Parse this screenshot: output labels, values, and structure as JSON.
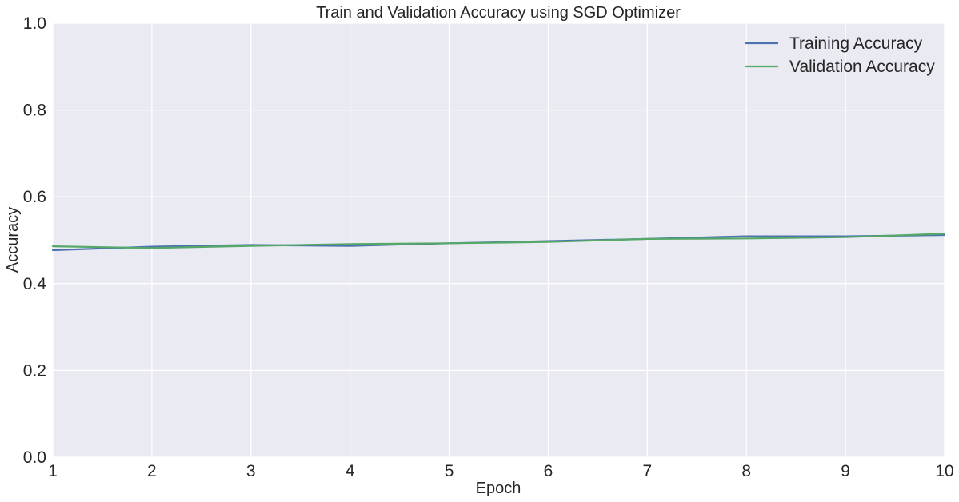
{
  "chart_data": {
    "type": "line",
    "title": "Train and Validation Accuracy using SGD Optimizer",
    "xlabel": "Epoch",
    "ylabel": "Accuracy",
    "xlim": [
      1,
      10
    ],
    "ylim": [
      0.0,
      1.0
    ],
    "x": [
      1,
      2,
      3,
      4,
      5,
      6,
      7,
      8,
      9,
      10
    ],
    "xticks": [
      "1",
      "2",
      "3",
      "4",
      "5",
      "6",
      "7",
      "8",
      "9",
      "10"
    ],
    "yticks": [
      "0.0",
      "0.2",
      "0.4",
      "0.6",
      "0.8",
      "1.0"
    ],
    "grid": true,
    "legend_position": "top-right",
    "series": [
      {
        "name": "Training Accuracy",
        "color": "#4c72b0",
        "values": [
          0.477,
          0.485,
          0.489,
          0.487,
          0.493,
          0.498,
          0.503,
          0.509,
          0.509,
          0.512
        ]
      },
      {
        "name": "Validation Accuracy",
        "color": "#55a868",
        "values": [
          0.486,
          0.482,
          0.487,
          0.491,
          0.493,
          0.496,
          0.503,
          0.504,
          0.507,
          0.515
        ]
      }
    ]
  }
}
